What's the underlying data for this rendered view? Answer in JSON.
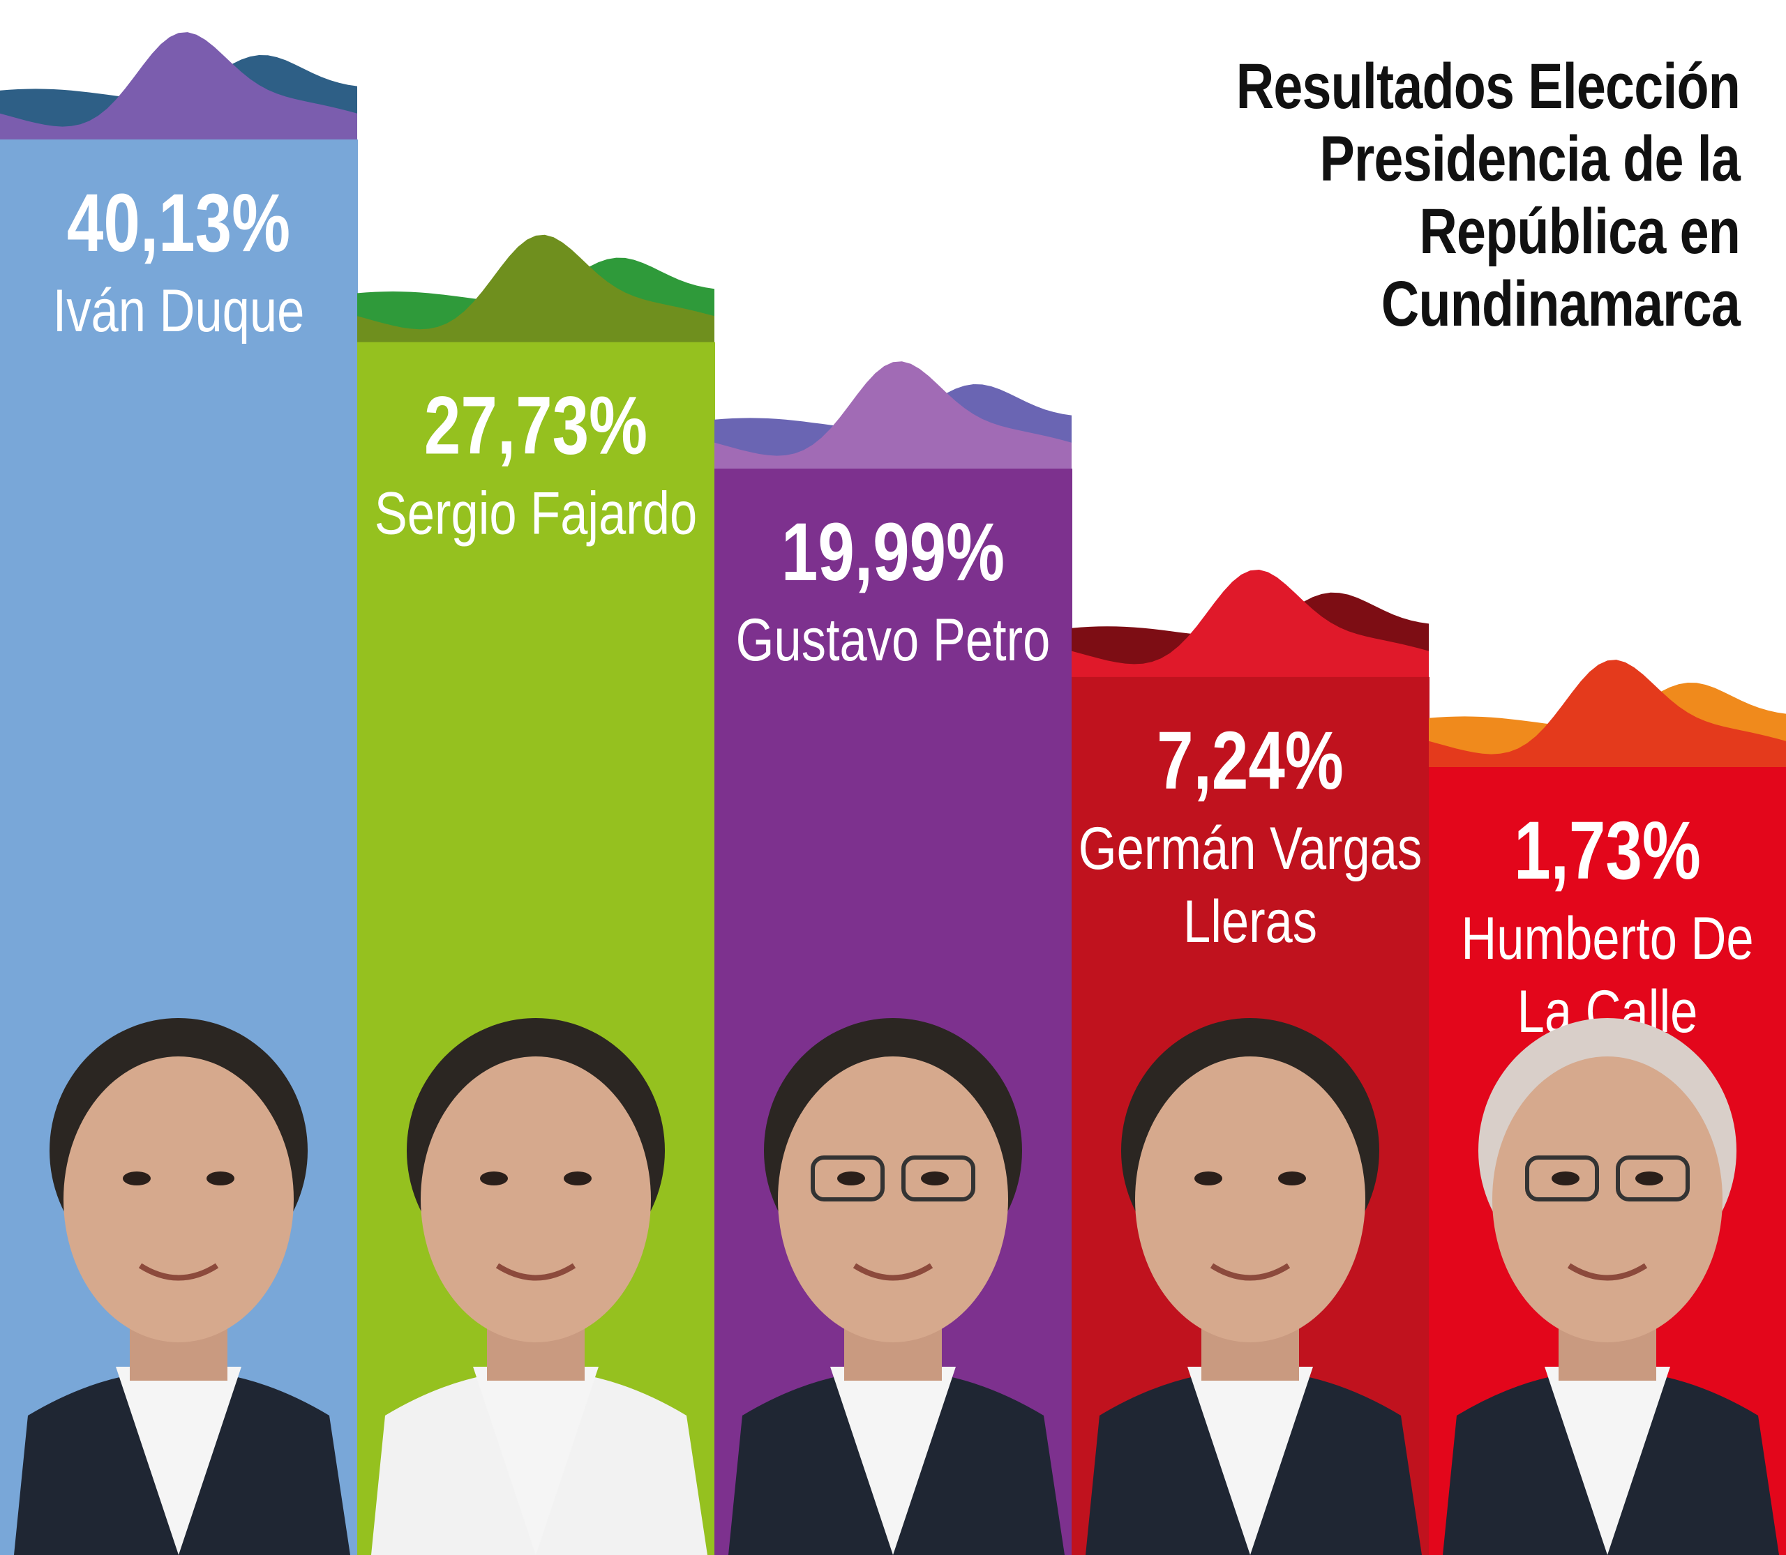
{
  "chart_data": {
    "type": "bar",
    "title_lines": [
      "Resultados Elección",
      "Presidencia de la",
      "República en",
      "Cundinamarca"
    ],
    "categories": [
      {
        "name_lines": [
          "Iván Duque"
        ],
        "value_label": "40,13%",
        "value": 40.13,
        "color": "#79a7d8",
        "wave_back": "#2e5f86",
        "wave_front": "#7b5dae",
        "portrait_icon": "man-portrait-icon"
      },
      {
        "name_lines": [
          "Sergio Fajardo"
        ],
        "value_label": "27,73%",
        "value": 27.73,
        "color": "#95c11f",
        "wave_back": "#2f9a3a",
        "wave_front": "#6f8f1e",
        "portrait_icon": "man-curly-hair-portrait-icon"
      },
      {
        "name_lines": [
          "Gustavo Petro"
        ],
        "value_label": "19,99%",
        "value": 19.99,
        "color": "#7d318e",
        "wave_back": "#6a65b3",
        "wave_front": "#a16bb5",
        "portrait_icon": "man-glasses-portrait-icon"
      },
      {
        "name_lines": [
          "Germán Vargas",
          "Lleras"
        ],
        "value_label": "7,24%",
        "value": 7.24,
        "color": "#c0121e",
        "wave_back": "#7d0d14",
        "wave_front": "#e0192a",
        "portrait_icon": "man-portrait-icon"
      },
      {
        "name_lines": [
          "Humberto De",
          "La Calle"
        ],
        "value_label": "1,73%",
        "value": 1.73,
        "color": "#e3061b",
        "wave_back": "#f08a1c",
        "wave_front": "#e43a1c",
        "portrait_icon": "man-glasses-portrait-icon"
      }
    ]
  }
}
